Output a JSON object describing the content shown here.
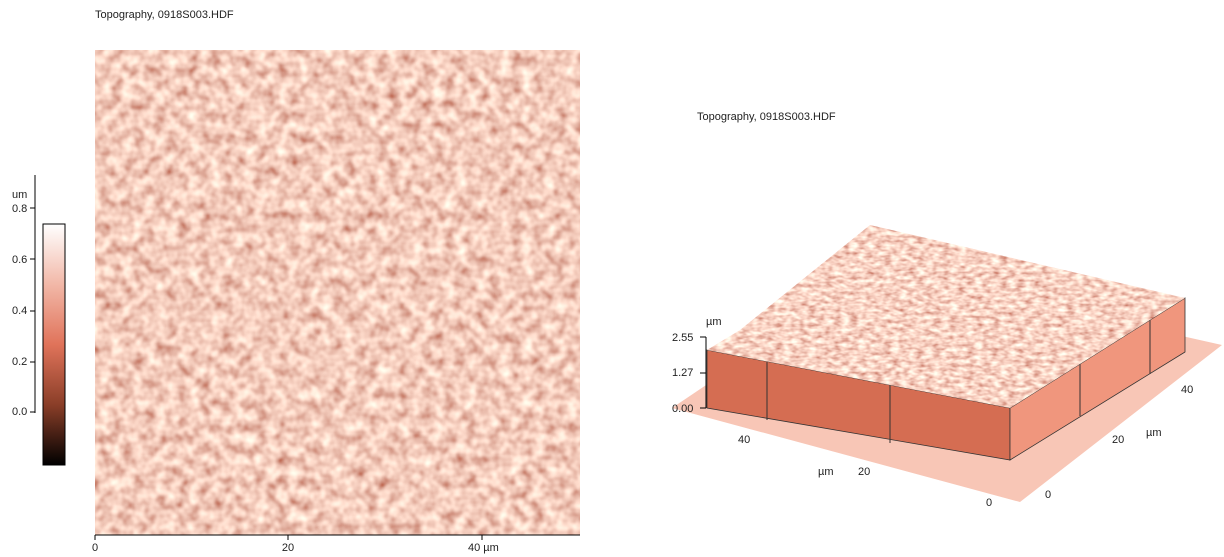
{
  "left_panel": {
    "title": "Topography, 0918S003.HDF",
    "colorbar": {
      "unit": "um",
      "ticks": [
        "0.8",
        "0.6",
        "0.4",
        "0.2",
        "0.0"
      ]
    },
    "x_axis": {
      "ticks": [
        "0",
        "20",
        "40 µm"
      ]
    }
  },
  "right_panel": {
    "title": "Topography, 0918S003.HDF",
    "z_axis": {
      "unit": "µm",
      "ticks": [
        "2.55",
        "1.27",
        "0.00"
      ]
    },
    "front_axis": {
      "unit": "µm",
      "ticks": [
        "40",
        "20",
        "0"
      ]
    },
    "side_axis": {
      "unit": "µm",
      "ticks": [
        "0",
        "20",
        "40"
      ]
    }
  }
}
